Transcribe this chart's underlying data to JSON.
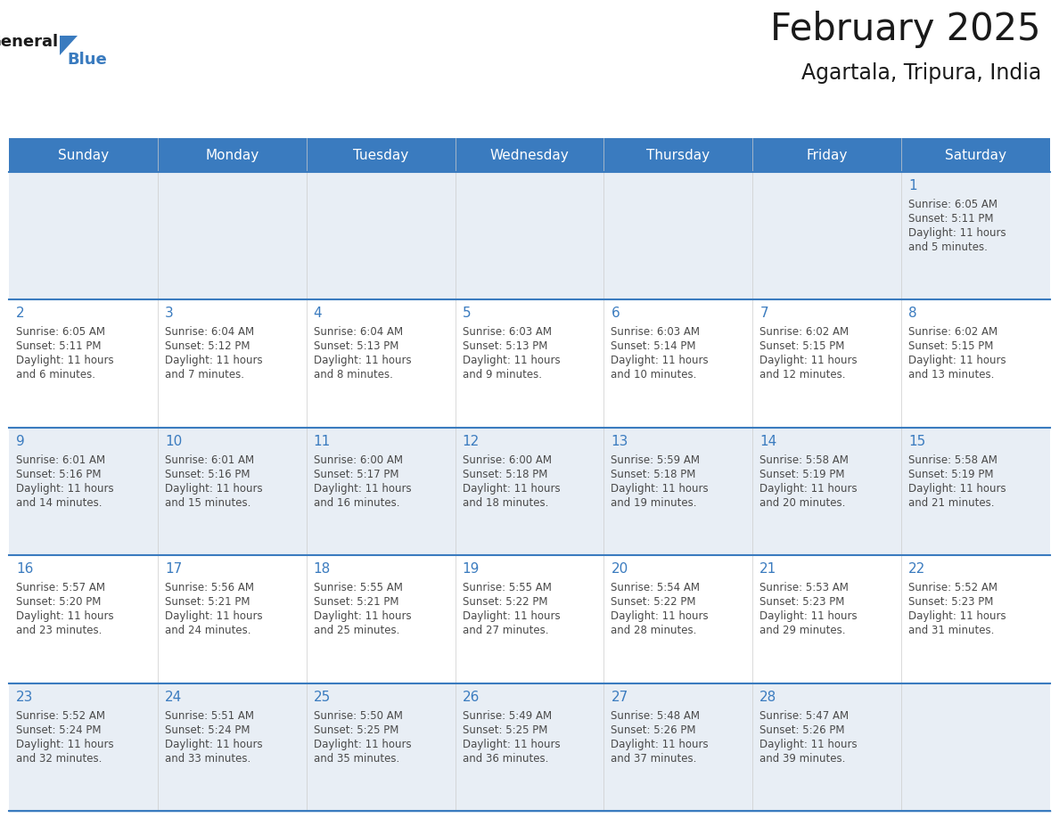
{
  "title": "February 2025",
  "subtitle": "Agartala, Tripura, India",
  "days_of_week": [
    "Sunday",
    "Monday",
    "Tuesday",
    "Wednesday",
    "Thursday",
    "Friday",
    "Saturday"
  ],
  "header_bg": "#3a7bbf",
  "header_text": "#ffffff",
  "day_num_color": "#3a7bbf",
  "cell_info_color": "#4a4a4a",
  "row0_bg": "#e8eef5",
  "row1_bg": "#ffffff",
  "row2_bg": "#e8eef5",
  "row3_bg": "#ffffff",
  "row4_bg": "#e8eef5",
  "white_bg": "#ffffff",
  "grid_line_color": "#3a7bbf",
  "title_color": "#1a1a1a",
  "subtitle_color": "#1a1a1a",
  "logo_general_color": "#1a1a1a",
  "logo_blue_color": "#3a7bbf",
  "calendar": [
    [
      null,
      null,
      null,
      null,
      null,
      null,
      {
        "day": 1,
        "sunrise": "6:05 AM",
        "sunset": "5:11 PM",
        "daylight": "11 hours and 5 minutes."
      }
    ],
    [
      {
        "day": 2,
        "sunrise": "6:05 AM",
        "sunset": "5:11 PM",
        "daylight": "11 hours and 6 minutes."
      },
      {
        "day": 3,
        "sunrise": "6:04 AM",
        "sunset": "5:12 PM",
        "daylight": "11 hours and 7 minutes."
      },
      {
        "day": 4,
        "sunrise": "6:04 AM",
        "sunset": "5:13 PM",
        "daylight": "11 hours and 8 minutes."
      },
      {
        "day": 5,
        "sunrise": "6:03 AM",
        "sunset": "5:13 PM",
        "daylight": "11 hours and 9 minutes."
      },
      {
        "day": 6,
        "sunrise": "6:03 AM",
        "sunset": "5:14 PM",
        "daylight": "11 hours and 10 minutes."
      },
      {
        "day": 7,
        "sunrise": "6:02 AM",
        "sunset": "5:15 PM",
        "daylight": "11 hours and 12 minutes."
      },
      {
        "day": 8,
        "sunrise": "6:02 AM",
        "sunset": "5:15 PM",
        "daylight": "11 hours and 13 minutes."
      }
    ],
    [
      {
        "day": 9,
        "sunrise": "6:01 AM",
        "sunset": "5:16 PM",
        "daylight": "11 hours and 14 minutes."
      },
      {
        "day": 10,
        "sunrise": "6:01 AM",
        "sunset": "5:16 PM",
        "daylight": "11 hours and 15 minutes."
      },
      {
        "day": 11,
        "sunrise": "6:00 AM",
        "sunset": "5:17 PM",
        "daylight": "11 hours and 16 minutes."
      },
      {
        "day": 12,
        "sunrise": "6:00 AM",
        "sunset": "5:18 PM",
        "daylight": "11 hours and 18 minutes."
      },
      {
        "day": 13,
        "sunrise": "5:59 AM",
        "sunset": "5:18 PM",
        "daylight": "11 hours and 19 minutes."
      },
      {
        "day": 14,
        "sunrise": "5:58 AM",
        "sunset": "5:19 PM",
        "daylight": "11 hours and 20 minutes."
      },
      {
        "day": 15,
        "sunrise": "5:58 AM",
        "sunset": "5:19 PM",
        "daylight": "11 hours and 21 minutes."
      }
    ],
    [
      {
        "day": 16,
        "sunrise": "5:57 AM",
        "sunset": "5:20 PM",
        "daylight": "11 hours and 23 minutes."
      },
      {
        "day": 17,
        "sunrise": "5:56 AM",
        "sunset": "5:21 PM",
        "daylight": "11 hours and 24 minutes."
      },
      {
        "day": 18,
        "sunrise": "5:55 AM",
        "sunset": "5:21 PM",
        "daylight": "11 hours and 25 minutes."
      },
      {
        "day": 19,
        "sunrise": "5:55 AM",
        "sunset": "5:22 PM",
        "daylight": "11 hours and 27 minutes."
      },
      {
        "day": 20,
        "sunrise": "5:54 AM",
        "sunset": "5:22 PM",
        "daylight": "11 hours and 28 minutes."
      },
      {
        "day": 21,
        "sunrise": "5:53 AM",
        "sunset": "5:23 PM",
        "daylight": "11 hours and 29 minutes."
      },
      {
        "day": 22,
        "sunrise": "5:52 AM",
        "sunset": "5:23 PM",
        "daylight": "11 hours and 31 minutes."
      }
    ],
    [
      {
        "day": 23,
        "sunrise": "5:52 AM",
        "sunset": "5:24 PM",
        "daylight": "11 hours and 32 minutes."
      },
      {
        "day": 24,
        "sunrise": "5:51 AM",
        "sunset": "5:24 PM",
        "daylight": "11 hours and 33 minutes."
      },
      {
        "day": 25,
        "sunrise": "5:50 AM",
        "sunset": "5:25 PM",
        "daylight": "11 hours and 35 minutes."
      },
      {
        "day": 26,
        "sunrise": "5:49 AM",
        "sunset": "5:25 PM",
        "daylight": "11 hours and 36 minutes."
      },
      {
        "day": 27,
        "sunrise": "5:48 AM",
        "sunset": "5:26 PM",
        "daylight": "11 hours and 37 minutes."
      },
      {
        "day": 28,
        "sunrise": "5:47 AM",
        "sunset": "5:26 PM",
        "daylight": "11 hours and 39 minutes."
      },
      null
    ]
  ]
}
